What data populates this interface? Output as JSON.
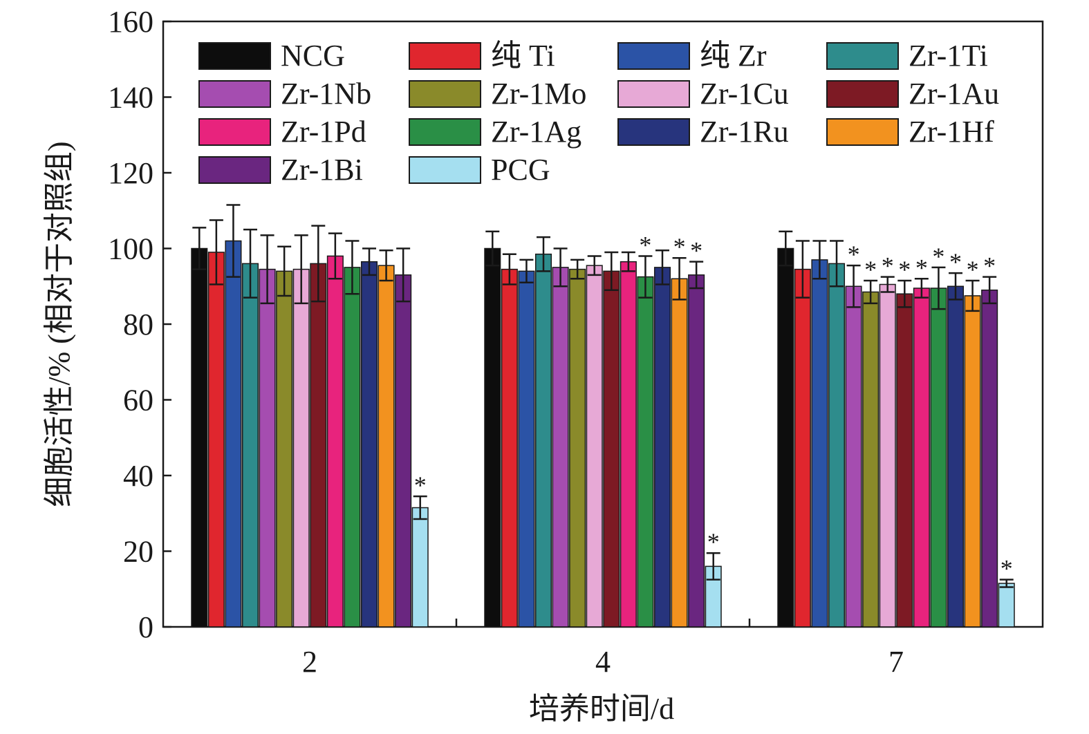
{
  "chart_data": {
    "type": "bar",
    "xlabel": "培养时间/d",
    "ylabel": "细胞活性/% (相对于对照组)",
    "ylim": [
      0,
      160
    ],
    "yticks": [
      "0",
      "20",
      "40",
      "60",
      "80",
      "100",
      "120",
      "140",
      "160"
    ],
    "categories": [
      "2",
      "4",
      "7"
    ],
    "legend_position": "top",
    "grid": false,
    "significance_marker": "*",
    "series": [
      {
        "name": "NCG",
        "color": "#0d0d0d",
        "values": [
          100,
          100,
          100
        ],
        "errors": [
          5.5,
          4.5,
          4.5
        ],
        "significant": [
          false,
          false,
          false
        ]
      },
      {
        "name": "纯 Ti",
        "color": "#e0262e",
        "values": [
          99,
          94.5,
          94.5
        ],
        "errors": [
          8.5,
          4,
          7.5
        ],
        "significant": [
          false,
          false,
          false
        ]
      },
      {
        "name": "纯 Zr",
        "color": "#2b53a6",
        "values": [
          102,
          94,
          97
        ],
        "errors": [
          9.5,
          3,
          5
        ],
        "significant": [
          false,
          false,
          false
        ]
      },
      {
        "name": "Zr-1Ti",
        "color": "#2e8c8c",
        "values": [
          96,
          98.5,
          96
        ],
        "errors": [
          9,
          4.5,
          6
        ],
        "significant": [
          false,
          false,
          false
        ]
      },
      {
        "name": "Zr-1Nb",
        "color": "#a54db0",
        "values": [
          94.5,
          95,
          90
        ],
        "errors": [
          9,
          5,
          5.5
        ],
        "significant": [
          false,
          false,
          true
        ]
      },
      {
        "name": "Zr-1Mo",
        "color": "#8a8a2a",
        "values": [
          94,
          94.5,
          88.5
        ],
        "errors": [
          6.5,
          2.5,
          3
        ],
        "significant": [
          false,
          false,
          true
        ]
      },
      {
        "name": "Zr-1Cu",
        "color": "#e7a9d6",
        "values": [
          94.5,
          95.5,
          90.5
        ],
        "errors": [
          9,
          2.5,
          2
        ],
        "significant": [
          false,
          false,
          true
        ]
      },
      {
        "name": "Zr-1Au",
        "color": "#7d1a24",
        "values": [
          96,
          94,
          88
        ],
        "errors": [
          10,
          5,
          3.5
        ],
        "significant": [
          false,
          false,
          true
        ]
      },
      {
        "name": "Zr-1Pd",
        "color": "#e8237d",
        "values": [
          98,
          96.5,
          89.5
        ],
        "errors": [
          6,
          2.5,
          2.5
        ],
        "significant": [
          false,
          false,
          true
        ]
      },
      {
        "name": "Zr-1Ag",
        "color": "#2a8f46",
        "values": [
          95,
          92.5,
          89.5
        ],
        "errors": [
          7,
          5.5,
          5.5
        ],
        "significant": [
          false,
          true,
          true
        ]
      },
      {
        "name": "Zr-1Ru",
        "color": "#27347d",
        "values": [
          96.5,
          95,
          90
        ],
        "errors": [
          3.5,
          4.5,
          3.5
        ],
        "significant": [
          false,
          false,
          true
        ]
      },
      {
        "name": "Zr-1Hf",
        "color": "#f2921f",
        "values": [
          95.5,
          92,
          87.5
        ],
        "errors": [
          4,
          5.5,
          4
        ],
        "significant": [
          false,
          true,
          true
        ]
      },
      {
        "name": "Zr-1Bi",
        "color": "#6a2680",
        "values": [
          93,
          93,
          89
        ],
        "errors": [
          7,
          3.5,
          3.5
        ],
        "significant": [
          false,
          true,
          true
        ]
      },
      {
        "name": "PCG",
        "color": "#a5dff0",
        "values": [
          31.5,
          16,
          11.5
        ],
        "errors": [
          3,
          3.5,
          1
        ],
        "significant": [
          true,
          true,
          true
        ]
      }
    ]
  }
}
